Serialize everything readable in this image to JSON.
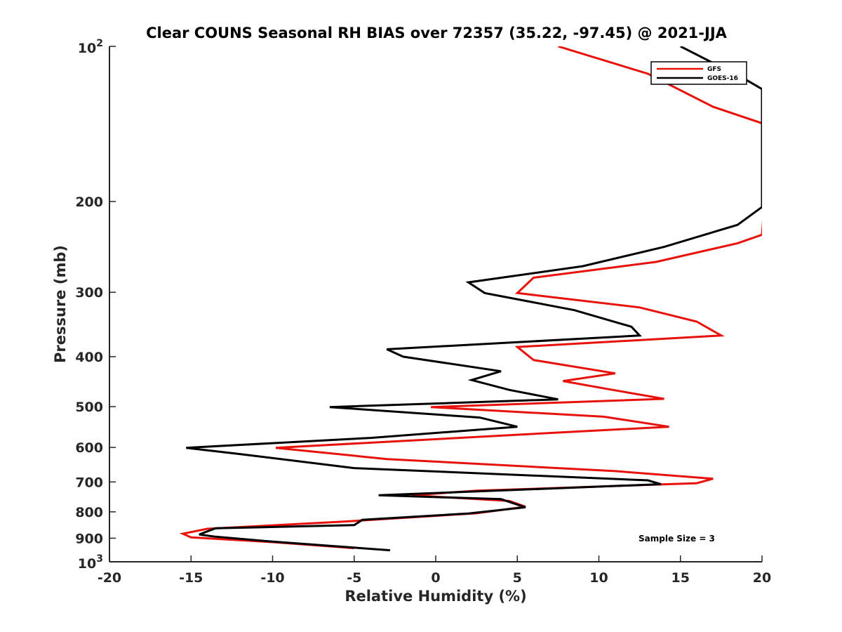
{
  "chart_data": {
    "type": "line",
    "title": "Clear COUNS Seasonal RH BIAS over 72357 (35.22, -97.45) @ 2021-JJA",
    "xlabel": "Relative Humidity (%)",
    "ylabel": "Pressure (mb)",
    "xlim": [
      -20,
      20
    ],
    "ylim": [
      100,
      1000
    ],
    "yscale": "log",
    "y_reversed": true,
    "grid": false,
    "legend_position": "top-right",
    "x_ticks": [
      -20,
      -15,
      -10,
      -5,
      0,
      5,
      10,
      15,
      20
    ],
    "x_tick_labels": [
      "-20",
      "-15",
      "-10",
      "-5",
      "0",
      "5",
      "10",
      "15",
      "20"
    ],
    "y_ticks": [
      200,
      300,
      400,
      500,
      600,
      700,
      800,
      900
    ],
    "y_tick_labels": [
      "200",
      "300",
      "400",
      "500",
      "600",
      "700",
      "800",
      "900"
    ],
    "y_ticks_pow": [
      {
        "value": 100,
        "base": "10",
        "exp": "2"
      },
      {
        "value": 1000,
        "base": "10",
        "exp": "3"
      }
    ],
    "annotation": "Sample Size = 3",
    "series": [
      {
        "name": "GFS",
        "color": "#e8120c",
        "points": [
          [
            7.5,
            100
          ],
          [
            13,
            113
          ],
          [
            17,
            131
          ],
          [
            20,
            141
          ],
          [
            20.5,
            142
          ],
          [
            20,
            232
          ],
          [
            18.5,
            241
          ],
          [
            13.5,
            262
          ],
          [
            6,
            281
          ],
          [
            5,
            301
          ],
          [
            12.5,
            321
          ],
          [
            16,
            342
          ],
          [
            17.5,
            364
          ],
          [
            5,
            383
          ],
          [
            6,
            406
          ],
          [
            11,
            431
          ],
          [
            7.8,
            446
          ],
          [
            10.5,
            462
          ],
          [
            14,
            483
          ],
          [
            -0.3,
            501
          ],
          [
            10.3,
            523
          ],
          [
            14.3,
            547
          ],
          [
            5,
            567
          ],
          [
            -9.8,
            601
          ],
          [
            -3,
            632
          ],
          [
            11,
            667
          ],
          [
            17,
            690
          ],
          [
            16,
            704
          ],
          [
            2.5,
            728
          ],
          [
            -1.5,
            743
          ],
          [
            4.5,
            762
          ],
          [
            5.5,
            782
          ],
          [
            2.5,
            805
          ],
          [
            -6,
            837
          ],
          [
            -14,
            863
          ],
          [
            -15.5,
            882
          ],
          [
            -15,
            897
          ],
          [
            -10,
            916
          ],
          [
            -5,
            941
          ]
        ]
      },
      {
        "name": "GOES-16",
        "color": "#000000",
        "points": [
          [
            15,
            100
          ],
          [
            19,
            116
          ],
          [
            20,
            121
          ],
          [
            20,
            205
          ],
          [
            18.5,
            222
          ],
          [
            14,
            245
          ],
          [
            9,
            267
          ],
          [
            2,
            287
          ],
          [
            3,
            301
          ],
          [
            8.5,
            325
          ],
          [
            12,
            350
          ],
          [
            12.5,
            364
          ],
          [
            -3,
            387
          ],
          [
            -2,
            400
          ],
          [
            4,
            427
          ],
          [
            2.2,
            444
          ],
          [
            4.5,
            464
          ],
          [
            7.5,
            484
          ],
          [
            -6.5,
            501
          ],
          [
            2.7,
            525
          ],
          [
            5,
            547
          ],
          [
            -4,
            575
          ],
          [
            -15.3,
            601
          ],
          [
            -12,
            618
          ],
          [
            -5,
            658
          ],
          [
            13,
            695
          ],
          [
            13.8,
            707
          ],
          [
            -3.5,
            743
          ],
          [
            4,
            756
          ],
          [
            5.5,
            784
          ],
          [
            2,
            806
          ],
          [
            -4.5,
            829
          ],
          [
            -5,
            849
          ],
          [
            -13.5,
            861
          ],
          [
            -14.5,
            885
          ],
          [
            -13.5,
            894
          ],
          [
            -10,
            914
          ],
          [
            -2.8,
            950
          ]
        ]
      }
    ]
  }
}
